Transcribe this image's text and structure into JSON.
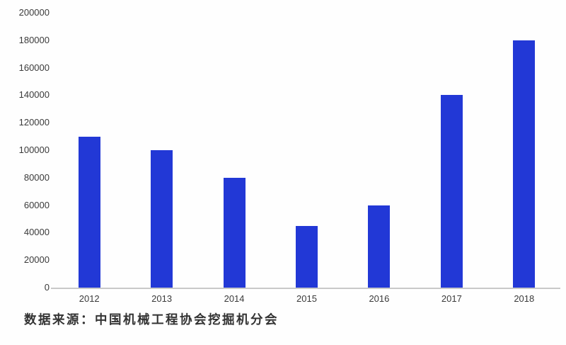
{
  "chart_data": {
    "type": "bar",
    "title": "",
    "xlabel": "",
    "ylabel": "",
    "categories": [
      "2012",
      "2013",
      "2014",
      "2015",
      "2016",
      "2017",
      "2018"
    ],
    "values": [
      110000,
      100000,
      80000,
      45000,
      60000,
      140000,
      180000
    ],
    "ylim": [
      0,
      200000
    ],
    "yticks": [
      0,
      20000,
      40000,
      60000,
      80000,
      100000,
      120000,
      140000,
      160000,
      180000,
      200000
    ],
    "grid": false,
    "legend_position": "none",
    "bar_color": "#2238d6",
    "axis_line_color": "#c9c9c9",
    "tick_label_color": "#3a3a3a"
  },
  "caption": {
    "text": "数据来源：中国机械工程协会挖掘机分会"
  }
}
